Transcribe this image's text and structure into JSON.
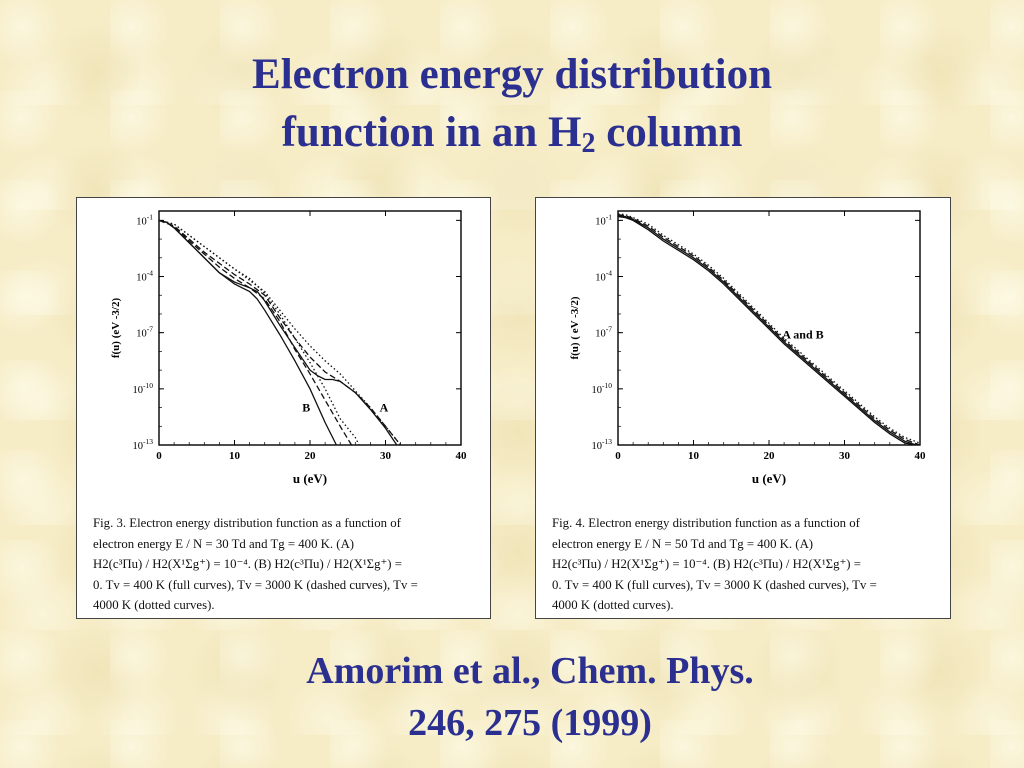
{
  "slide": {
    "title_line1": "Electron energy distribution",
    "title_line2_pre": "function in an H",
    "title_line2_sub": "2",
    "title_line2_post": " column",
    "citation_line1": "Amorim et al., Chem. Phys.",
    "citation_line2": "246, 275 (1999)"
  },
  "figures": [
    {
      "caption_lines": [
        "Fig. 3.  Electron  energy  distribution  function  as  a  function  of",
        "electron   energy    E / N = 30   Td   and   Tg = 400  K.   (A)",
        "H2(c³Πu) / H2(X¹Σg⁺) = 10⁻⁴.  (B)  H2(c³Πu) / H2(X¹Σg⁺) =",
        "0.  Tv = 400 K (full curves),  Tv = 3000 K (dashed curves),  Tv =",
        "4000 K (dotted curves)."
      ]
    },
    {
      "caption_lines": [
        "Fig.  4.  Electron  energy  distribution  function  as  a  function  of",
        "electron   energy    E / N = 50   Td   and   Tg = 400  K.   (A)",
        "H2(c³Πu) / H2(X¹Σg⁺) = 10⁻⁴.  (B)  H2(c³Πu) / H2(X¹Σg⁺) =",
        "0.  Tv = 400 K (full curves),  Tv = 3000 K (dashed curves),  Tv =",
        "4000 K (dotted curves)."
      ]
    }
  ],
  "chart_data": [
    {
      "type": "line",
      "xlabel": "u (eV)",
      "ylabel": "f(u)  (eV -3/2)",
      "xlim": [
        0,
        40
      ],
      "ylim_log10": [
        -13,
        -0.5
      ],
      "x_ticks": [
        0,
        10,
        20,
        30,
        40
      ],
      "x_tick_labels": [
        "0",
        "10",
        "20",
        "30",
        "40"
      ],
      "y_ticks_log10": [
        -1,
        -4,
        -7,
        -10,
        -13
      ],
      "y_tick_labels": [
        "10-1",
        "10-4",
        "10-7",
        "10-10",
        "10-13"
      ],
      "annotations": [
        {
          "text": "B",
          "x": 19.5,
          "y_log10": -11.2
        },
        {
          "text": "A",
          "x": 29.8,
          "y_log10": -11.2
        }
      ],
      "series": [
        {
          "style": "solid",
          "x": [
            0,
            1,
            2,
            3,
            4,
            5,
            6,
            8,
            10,
            11,
            12,
            13,
            14,
            16,
            18,
            20,
            22,
            23.5
          ],
          "y_log10": [
            -1,
            -1.1,
            -1.4,
            -1.8,
            -2.2,
            -2.6,
            -3,
            -3.8,
            -4.4,
            -4.6,
            -4.8,
            -5.2,
            -5.8,
            -7.1,
            -8.5,
            -10,
            -11.8,
            -13
          ]
        },
        {
          "style": "solid",
          "x": [
            0,
            1,
            2,
            3,
            4,
            5,
            6,
            8,
            10,
            12,
            13,
            14,
            16,
            18,
            20,
            21,
            22,
            23,
            24,
            26,
            28,
            30,
            31.5
          ],
          "y_log10": [
            -1,
            -1.1,
            -1.4,
            -1.8,
            -2.2,
            -2.6,
            -3,
            -3.8,
            -4.3,
            -4.6,
            -4.8,
            -5.3,
            -6.6,
            -7.8,
            -9,
            -9.3,
            -9.5,
            -9.5,
            -9.6,
            -10.2,
            -11.1,
            -12.1,
            -13
          ]
        },
        {
          "style": "dashed",
          "x": [
            0,
            2,
            4,
            6,
            8,
            10,
            12,
            14,
            16,
            18,
            20,
            22,
            24,
            25.5
          ],
          "y_log10": [
            -1,
            -1.3,
            -2.1,
            -2.8,
            -3.5,
            -4.1,
            -4.6,
            -5.2,
            -6.4,
            -7.9,
            -9.2,
            -10.6,
            -12,
            -13
          ]
        },
        {
          "style": "dashed",
          "x": [
            0,
            2,
            4,
            6,
            8,
            10,
            12,
            14,
            16,
            18,
            20,
            22,
            24,
            26,
            28,
            30,
            32
          ],
          "y_log10": [
            -1,
            -1.3,
            -2,
            -2.7,
            -3.3,
            -3.9,
            -4.4,
            -5,
            -6.2,
            -7.3,
            -8.3,
            -9.1,
            -9.6,
            -10.2,
            -11,
            -12,
            -13
          ]
        },
        {
          "style": "dotted",
          "x": [
            0,
            2,
            4,
            6,
            8,
            10,
            12,
            14,
            16,
            18,
            20,
            22,
            24,
            26,
            26.5
          ],
          "y_log10": [
            -1,
            -1.2,
            -1.8,
            -2.4,
            -3,
            -3.6,
            -4.1,
            -4.9,
            -6,
            -7.3,
            -8.6,
            -10,
            -11.6,
            -12.6,
            -13
          ]
        },
        {
          "style": "dotted",
          "x": [
            0,
            2,
            4,
            6,
            8,
            10,
            12,
            14,
            16,
            18,
            20,
            22,
            24,
            26,
            28,
            30,
            32
          ],
          "y_log10": [
            -1,
            -1.2,
            -1.8,
            -2.4,
            -3,
            -3.6,
            -4.2,
            -4.8,
            -5.8,
            -6.8,
            -7.7,
            -8.5,
            -9.2,
            -10.1,
            -11,
            -12,
            -13
          ]
        }
      ]
    },
    {
      "type": "line",
      "xlabel": "u (eV)",
      "ylabel": "f(u)  ( eV -3/2)",
      "xlim": [
        0,
        40
      ],
      "ylim_log10": [
        -13,
        -0.5
      ],
      "x_ticks": [
        0,
        10,
        20,
        30,
        40
      ],
      "x_tick_labels": [
        "0",
        "10",
        "20",
        "30",
        "40"
      ],
      "y_ticks_log10": [
        -1,
        -4,
        -7,
        -10,
        -13
      ],
      "y_tick_labels": [
        "10-1",
        "10-4",
        "10-7",
        "10-10",
        "10-13"
      ],
      "annotations": [
        {
          "text": "A and B",
          "x": 24.5,
          "y_log10": -7.3
        }
      ],
      "series": [
        {
          "style": "solid",
          "x": [
            0,
            1,
            2,
            4,
            6,
            8,
            10,
            12,
            14,
            16,
            18,
            20,
            22,
            24,
            26,
            28,
            30,
            32,
            34,
            36,
            38,
            39.5
          ],
          "y_log10": [
            -0.8,
            -0.85,
            -1,
            -1.5,
            -2.1,
            -2.6,
            -3.1,
            -3.7,
            -4.4,
            -5.2,
            -6,
            -6.8,
            -7.6,
            -8.3,
            -9,
            -9.7,
            -10.4,
            -11.1,
            -11.8,
            -12.4,
            -12.9,
            -13.1
          ]
        },
        {
          "style": "solid",
          "x": [
            0,
            1,
            2,
            4,
            6,
            8,
            10,
            12,
            14,
            16,
            18,
            20,
            22,
            24,
            26,
            28,
            30,
            32,
            34,
            36,
            38,
            39.5
          ],
          "y_log10": [
            -0.75,
            -0.8,
            -0.95,
            -1.4,
            -2,
            -2.5,
            -3,
            -3.6,
            -4.3,
            -5.1,
            -5.9,
            -6.7,
            -7.5,
            -8.2,
            -8.9,
            -9.6,
            -10.3,
            -11,
            -11.7,
            -12.3,
            -12.8,
            -13
          ]
        },
        {
          "style": "dashed",
          "x": [
            0,
            1,
            2,
            4,
            6,
            8,
            10,
            12,
            14,
            16,
            18,
            20,
            22,
            24,
            26,
            28,
            30,
            32,
            34,
            36,
            38,
            40
          ],
          "y_log10": [
            -0.7,
            -0.75,
            -0.9,
            -1.3,
            -1.9,
            -2.4,
            -2.9,
            -3.5,
            -4.2,
            -5,
            -5.8,
            -6.6,
            -7.4,
            -8.1,
            -8.8,
            -9.5,
            -10.2,
            -10.9,
            -11.6,
            -12.2,
            -12.7,
            -13
          ]
        },
        {
          "style": "dotted",
          "x": [
            0,
            1,
            2,
            4,
            6,
            8,
            10,
            12,
            14,
            16,
            18,
            20,
            22,
            24,
            26,
            28,
            30,
            32,
            34,
            36,
            38,
            40
          ],
          "y_log10": [
            -0.65,
            -0.7,
            -0.85,
            -1.2,
            -1.8,
            -2.3,
            -2.8,
            -3.4,
            -4.1,
            -4.9,
            -5.7,
            -6.5,
            -7.3,
            -8,
            -8.7,
            -9.4,
            -10.1,
            -10.8,
            -11.5,
            -12.1,
            -12.6,
            -12.9
          ]
        }
      ]
    }
  ]
}
